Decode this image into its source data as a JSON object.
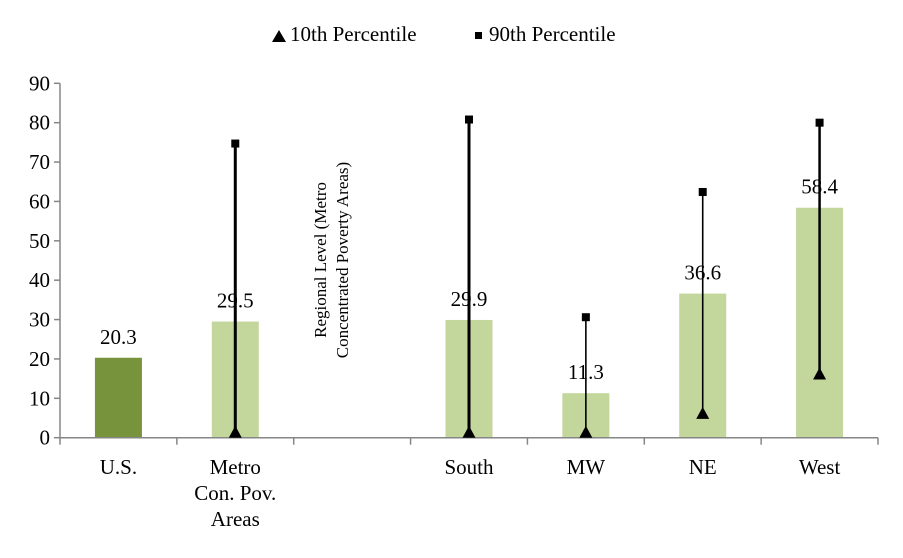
{
  "chart_data": {
    "type": "bar",
    "title": "",
    "xlabel": "",
    "ylabel": "",
    "ylim": [
      0,
      90
    ],
    "yticks": [
      0,
      10,
      20,
      30,
      40,
      50,
      60,
      70,
      80,
      90
    ],
    "grid": false,
    "legend_placement": "top",
    "categories": [
      [
        "U.S."
      ],
      [
        "Metro",
        "Con. Pov.",
        "Areas"
      ],
      [],
      [
        "South"
      ],
      [
        "MW"
      ],
      [
        "NE"
      ],
      [
        "West"
      ]
    ],
    "values": [
      20.3,
      29.5,
      null,
      29.9,
      11.3,
      36.6,
      58.4
    ],
    "data_labels": [
      "20.3",
      "29.5",
      "",
      "29.9",
      "11.3",
      "36.6",
      "58.4"
    ],
    "bar_colors": [
      "#77933c",
      "#c3d69b",
      null,
      "#c3d69b",
      "#c3d69b",
      "#c3d69b",
      "#c3d69b"
    ],
    "series": [
      {
        "name": "10th Percentile",
        "marker": "triangle",
        "values": [
          null,
          1.5,
          null,
          1.5,
          1.5,
          6.3,
          16.3
        ]
      },
      {
        "name": "90th Percentile",
        "marker": "square",
        "values": [
          null,
          74.7,
          null,
          80.8,
          30.6,
          62.4,
          80.0
        ]
      }
    ],
    "annotation": [
      "Regional Level (Metro",
      "Concentrated Poverty Areas)"
    ],
    "axis_color": "#868686"
  }
}
